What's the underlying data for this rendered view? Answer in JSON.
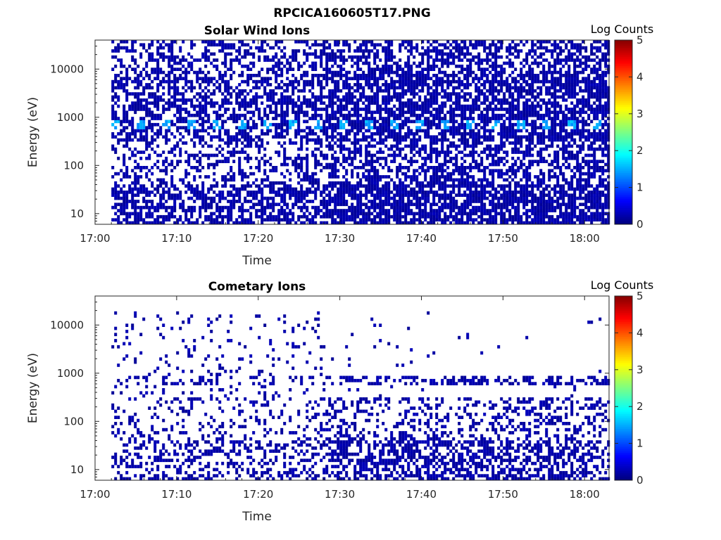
{
  "figure_title": "RPCICA160605T17.PNG",
  "chart_data": [
    {
      "type": "heatmap",
      "title": "Solar Wind Ions",
      "xlabel": "Time",
      "ylabel": "Energy (eV)",
      "x_ticks": [
        "17:00",
        "17:10",
        "17:20",
        "17:30",
        "17:40",
        "17:50",
        "18:00"
      ],
      "xlim": [
        "17:00",
        "18:03"
      ],
      "y_scale": "log",
      "y_ticks": [
        "10",
        "100",
        "1000",
        "10000"
      ],
      "ylim": [
        6,
        40000
      ],
      "data_start": "17:02",
      "colorbar": {
        "label": "Log Counts",
        "ticks": [
          "0",
          "1",
          "2",
          "3",
          "4",
          "5"
        ],
        "range": [
          0,
          5
        ],
        "colormap": "jet"
      },
      "features": {
        "peak_energy_eV": 700,
        "peak_log_counts": 1.6,
        "density_change_time": "17:28",
        "max_energy_eV": 40000
      }
    },
    {
      "type": "heatmap",
      "title": "Cometary Ions",
      "xlabel": "Time",
      "ylabel": "Energy (eV)",
      "x_ticks": [
        "17:00",
        "17:10",
        "17:20",
        "17:30",
        "17:40",
        "17:50",
        "18:00"
      ],
      "xlim": [
        "17:00",
        "18:03"
      ],
      "y_scale": "log",
      "y_ticks": [
        "10",
        "100",
        "1000",
        "10000"
      ],
      "ylim": [
        6,
        40000
      ],
      "data_start": "17:02",
      "colorbar": {
        "label": "Log Counts",
        "ticks": [
          "0",
          "1",
          "2",
          "3",
          "4",
          "5"
        ],
        "range": [
          0,
          5
        ],
        "colormap": "jet"
      },
      "features": {
        "band_energy_eV": 700,
        "density_change_time": "17:28",
        "max_energy_eV": 18000
      }
    }
  ]
}
